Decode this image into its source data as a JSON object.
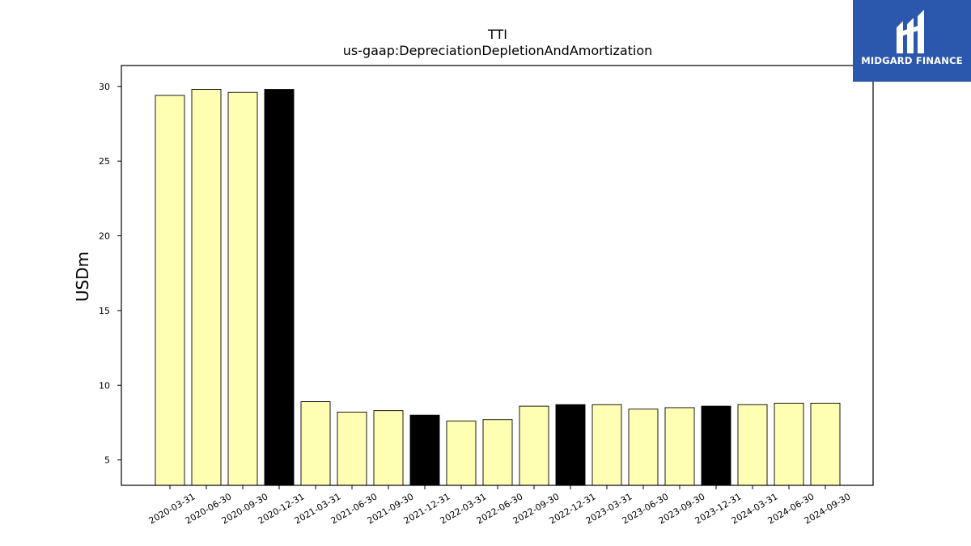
{
  "chart_data": {
    "type": "bar",
    "title": "TTI",
    "subtitle": "us-gaap:DepreciationDepletionAndAmortization",
    "xlabel": "",
    "ylabel": "USDm",
    "ylim": [
      3.3,
      31.4
    ],
    "yticks": [
      5,
      10,
      15,
      20,
      25,
      30
    ],
    "grid": false,
    "categories": [
      "2020-03-31",
      "2020-06-30",
      "2020-09-30",
      "2020-12-31",
      "2021-03-31",
      "2021-06-30",
      "2021-09-30",
      "2021-12-31",
      "2022-03-31",
      "2022-06-30",
      "2022-09-30",
      "2022-12-31",
      "2023-03-31",
      "2023-06-30",
      "2023-09-30",
      "2023-12-31",
      "2024-03-31",
      "2024-06-30",
      "2024-09-30"
    ],
    "values": [
      29.4,
      29.8,
      29.6,
      29.8,
      8.9,
      8.2,
      8.3,
      8.0,
      7.6,
      7.7,
      8.6,
      8.7,
      8.7,
      8.4,
      8.5,
      8.6,
      8.7,
      8.8,
      8.8
    ],
    "bar_colors": [
      "#ffffb3",
      "#ffffb3",
      "#ffffb3",
      "#000000",
      "#ffffb3",
      "#ffffb3",
      "#ffffb3",
      "#000000",
      "#ffffb3",
      "#ffffb3",
      "#ffffb3",
      "#000000",
      "#ffffb3",
      "#ffffb3",
      "#ffffb3",
      "#000000",
      "#ffffb3",
      "#ffffb3",
      "#ffffb3"
    ],
    "edge_color": "#000000"
  },
  "logo": {
    "text": "MIDGARD FINANCE",
    "background": "#2b58ad",
    "foreground": "#ffffff"
  }
}
